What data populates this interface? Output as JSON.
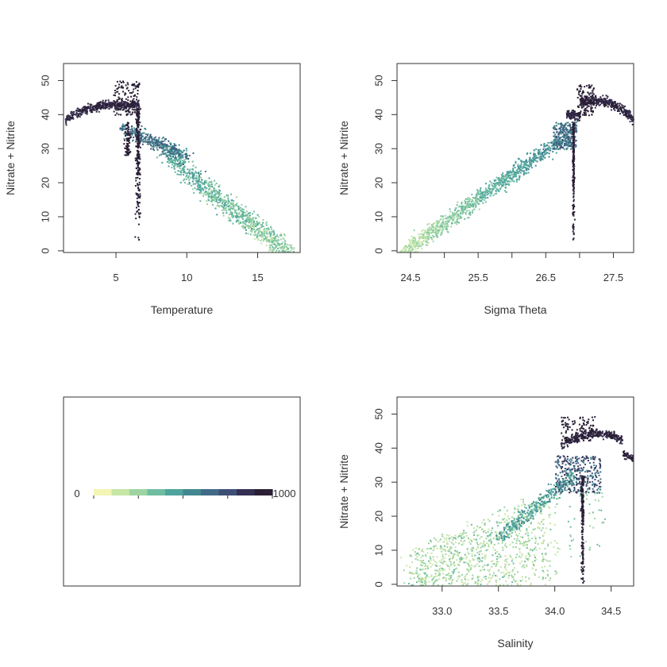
{
  "colors": {
    "palette": [
      "#f3f5b5",
      "#c6e6a4",
      "#9ed4a2",
      "#6fbda0",
      "#4ea39d",
      "#42878f",
      "#416a86",
      "#3e4f76",
      "#352f54",
      "#2a1f35"
    ],
    "frame": "#333333",
    "background": "#ffffff"
  },
  "chart_data": [
    {
      "panel": "top-left",
      "type": "scatter",
      "title": "",
      "xlabel": "Temperature",
      "ylabel": "Nitrate + Nitrite",
      "xlim": [
        1.3,
        18.0
      ],
      "ylim": [
        -0.5,
        55.0
      ],
      "xticks": [
        5,
        10,
        15
      ],
      "yticks": [
        0,
        10,
        20,
        30,
        40,
        50
      ],
      "encoding": "point density (color, 0 to 1000)",
      "clusters": [
        {
          "description": "warm low-nutrient branch",
          "x": [
            6.0,
            17.5
          ],
          "y": [
            0,
            32
          ],
          "density": "low-medium"
        },
        {
          "description": "cold high-nutrient plume",
          "x": [
            1.5,
            8.5
          ],
          "y": [
            33,
            50
          ],
          "density": "high"
        },
        {
          "description": "vertical spike",
          "x": [
            6.5,
            6.5
          ],
          "y": [
            0,
            45
          ],
          "density": "high"
        }
      ]
    },
    {
      "panel": "top-right",
      "type": "scatter",
      "title": "",
      "xlabel": "Sigma Theta",
      "ylabel": "Nitrate + Nitrite",
      "xlim": [
        24.3,
        27.8
      ],
      "ylim": [
        -0.5,
        55.0
      ],
      "xticks": [
        24.5,
        25.5,
        26.5,
        27.5
      ],
      "xticks_minor": [
        25.0,
        26.0,
        27.0
      ],
      "yticks": [
        0,
        10,
        20,
        30,
        40,
        50
      ],
      "encoding": "point density (color, 0 to 1000)",
      "clusters": [
        {
          "description": "linear band",
          "x": [
            24.4,
            26.8
          ],
          "y": [
            0,
            35
          ],
          "density": "low-medium"
        },
        {
          "description": "dense upper cluster",
          "x": [
            26.7,
            27.8
          ],
          "y": [
            33,
            50
          ],
          "density": "high"
        },
        {
          "description": "vertical spike",
          "x": [
            26.9,
            26.9
          ],
          "y": [
            0,
            40
          ],
          "density": "high"
        }
      ]
    },
    {
      "panel": "bottom-left",
      "type": "colorbar",
      "min_label": "0",
      "max_label": "1000",
      "range": [
        0,
        1000
      ]
    },
    {
      "panel": "bottom-right",
      "type": "scatter",
      "title": "",
      "xlabel": "Salinity",
      "ylabel": "Nitrate + Nitrite",
      "xlim": [
        32.6,
        34.7
      ],
      "ylim": [
        -0.5,
        55.0
      ],
      "xticks": [
        "33.0",
        "33.5",
        "34.0",
        "34.5"
      ],
      "yticks": [
        0,
        10,
        20,
        30,
        40,
        50
      ],
      "encoding": "point density (color, 0 to 1000)",
      "clusters": [
        {
          "description": "broad low-salinity cloud",
          "x": [
            32.8,
            33.9
          ],
          "y": [
            0,
            25
          ],
          "density": "low"
        },
        {
          "description": "rising band",
          "x": [
            33.5,
            34.2
          ],
          "y": [
            10,
            35
          ],
          "density": "medium"
        },
        {
          "description": "high-salinity plume",
          "x": [
            34.0,
            34.7
          ],
          "y": [
            30,
            50
          ],
          "density": "high"
        },
        {
          "description": "vertical spike",
          "x": [
            34.25,
            34.25
          ],
          "y": [
            0,
            32
          ],
          "density": "high"
        }
      ]
    }
  ]
}
